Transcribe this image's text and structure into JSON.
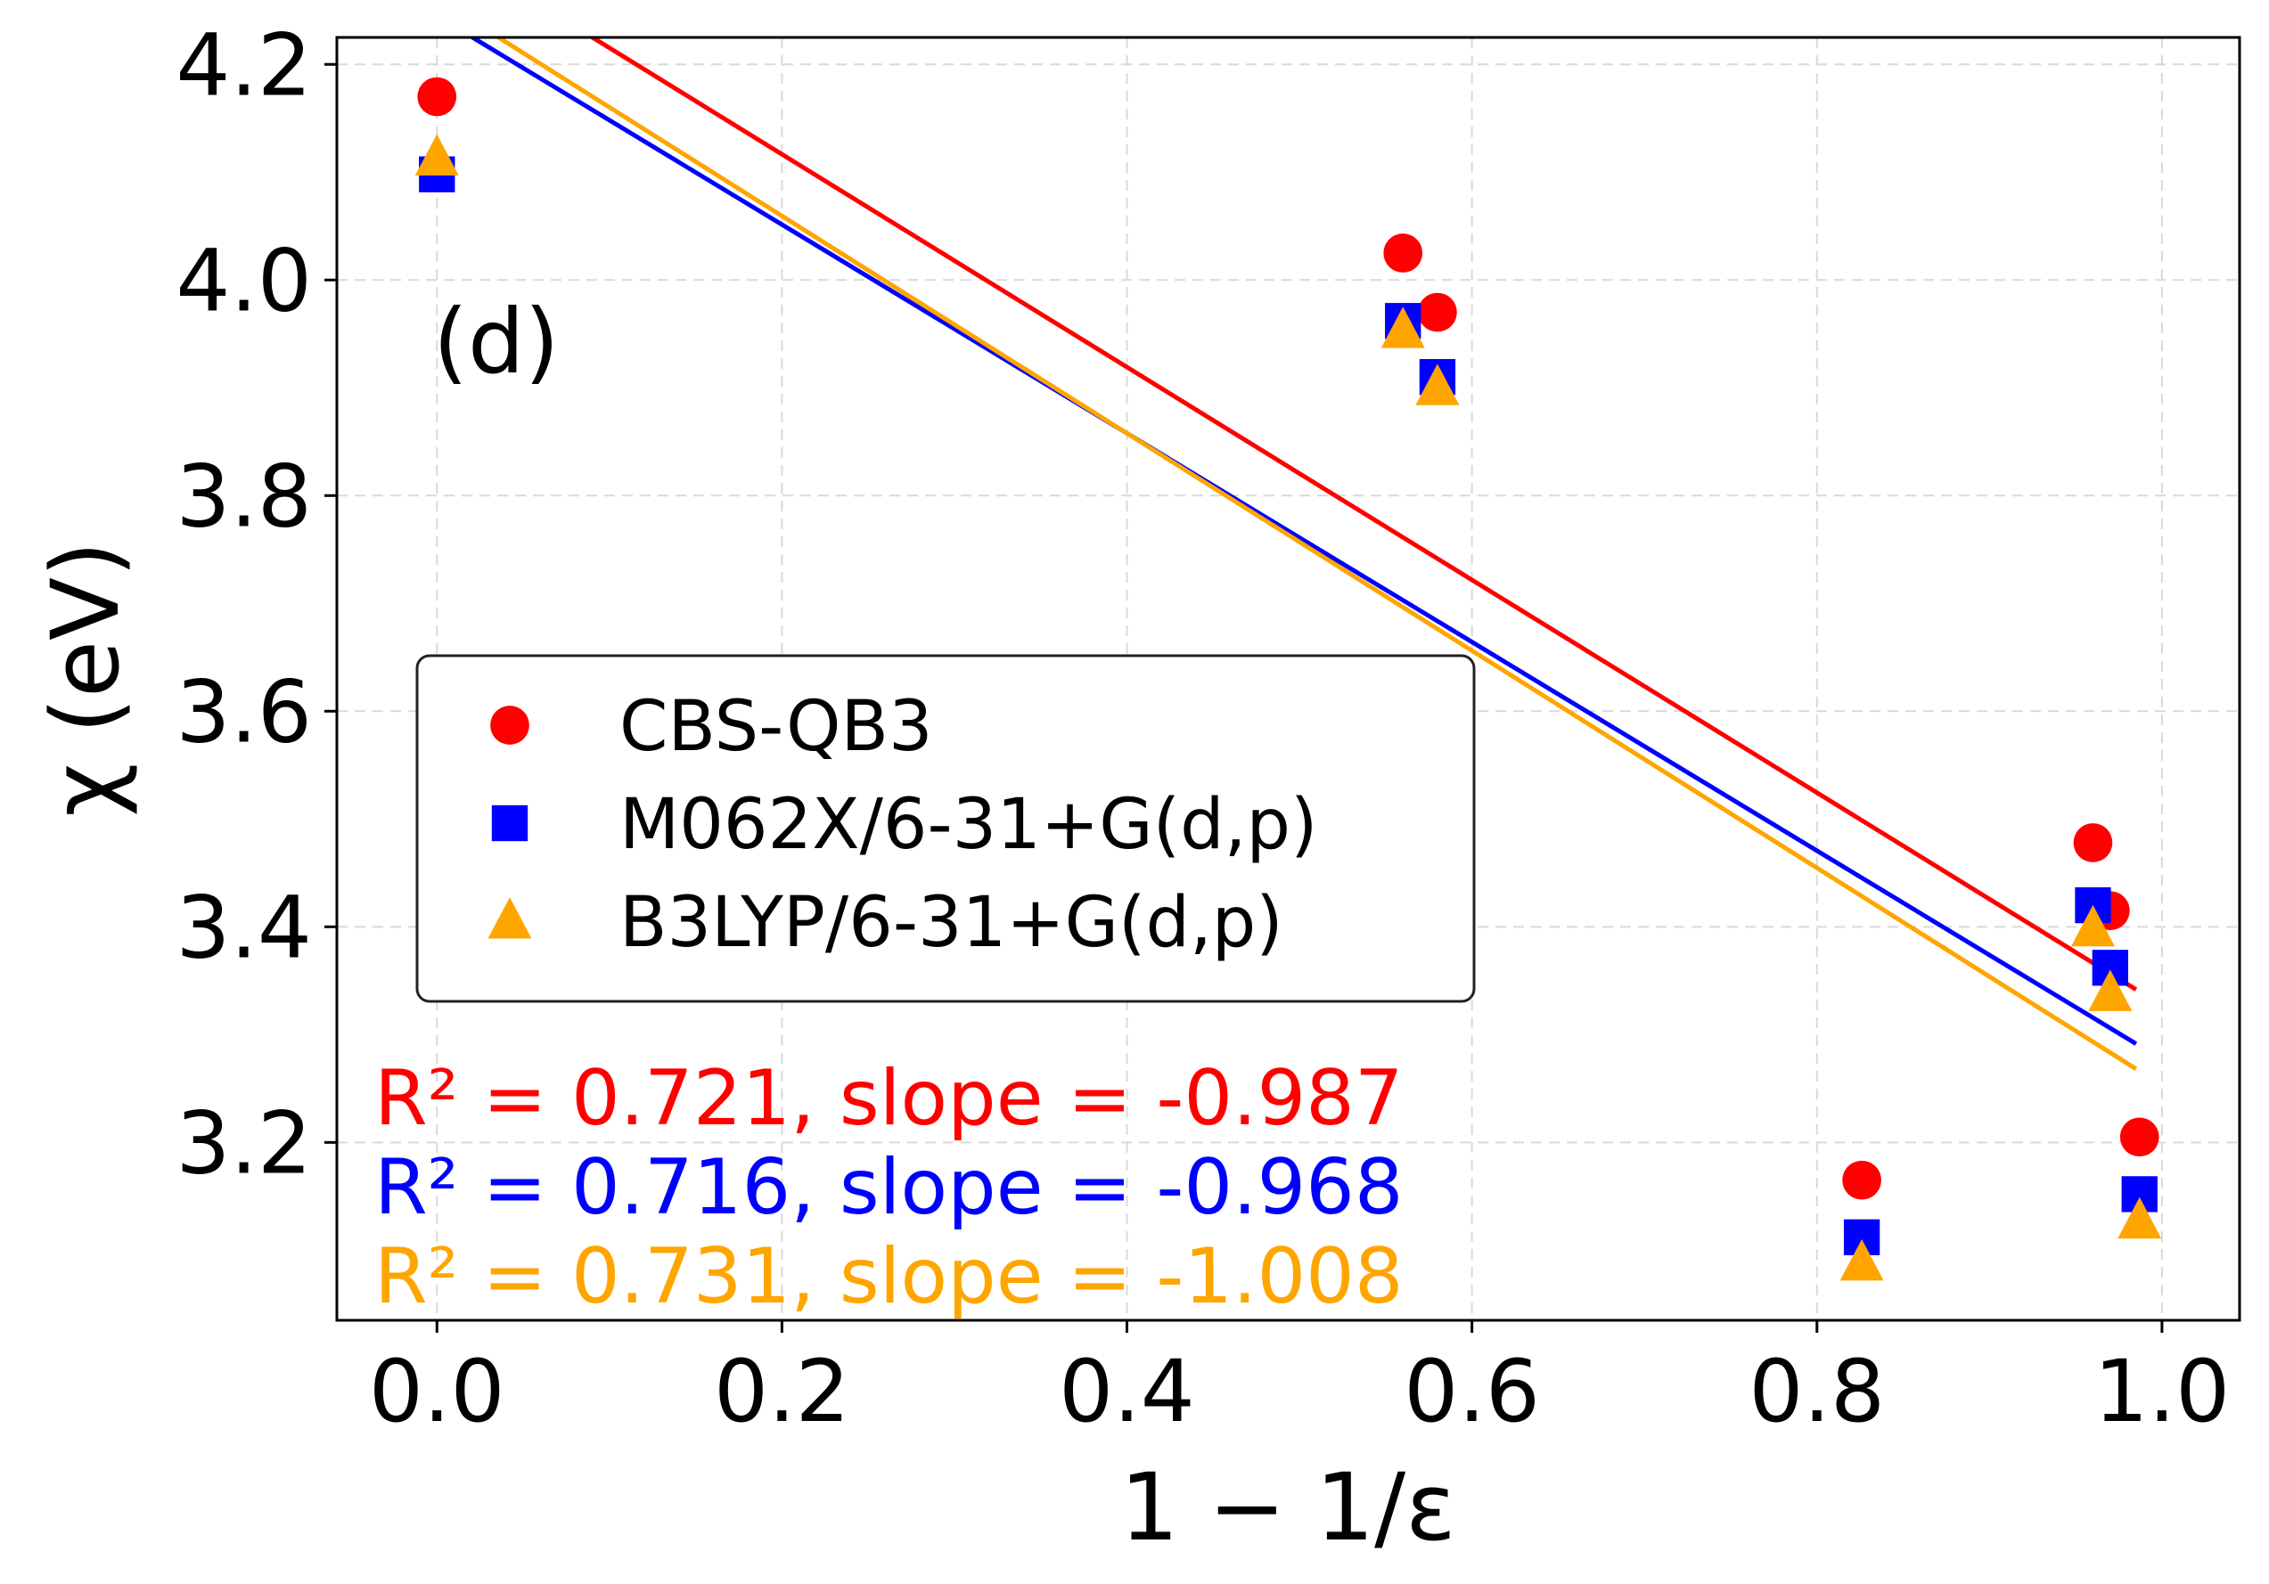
{
  "chart_data": {
    "type": "scatter",
    "panel_label": "(d)",
    "xlabel": "1 − 1/ε",
    "ylabel": "χ (eV)",
    "xlim": [
      -0.058,
      1.045
    ],
    "ylim": [
      3.035,
      4.225
    ],
    "x_ticks": [
      0.0,
      0.2,
      0.4,
      0.6,
      0.8,
      1.0
    ],
    "x_tick_labels": [
      "0.0",
      "0.2",
      "0.4",
      "0.6",
      "0.8",
      "1.0"
    ],
    "y_ticks": [
      3.2,
      3.4,
      3.6,
      3.8,
      4.0,
      4.2
    ],
    "y_tick_labels": [
      "3.2",
      "3.4",
      "3.6",
      "3.8",
      "4.0",
      "4.2"
    ],
    "grid": true,
    "legend_position": "center-left",
    "series": [
      {
        "name": "CBS-QB3",
        "color": "#ff0000",
        "marker": "circle",
        "x": [
          0.0,
          0.56,
          0.58,
          0.826,
          0.96,
          0.97,
          0.987
        ],
        "y": [
          4.17,
          4.025,
          3.97,
          3.165,
          3.478,
          3.415,
          3.205
        ],
        "fit": {
          "slope": -0.987,
          "intercept": 4.314,
          "r2": 0.721,
          "x_range": [
            0.0,
            0.985
          ]
        },
        "stats_label": "R² = 0.721, slope = -0.987"
      },
      {
        "name": "M062X/6-31+G(d,p)",
        "color": "#0000ff",
        "marker": "square",
        "x": [
          0.0,
          0.56,
          0.58,
          0.826,
          0.96,
          0.97,
          0.987
        ],
        "y": [
          4.098,
          3.962,
          3.91,
          3.112,
          3.42,
          3.362,
          3.152
        ],
        "fit": {
          "slope": -0.968,
          "intercept": 4.245,
          "r2": 0.716,
          "x_range": [
            0.0,
            0.985
          ]
        },
        "stats_label": "R² = 0.716, slope = -0.968"
      },
      {
        "name": "B3LYP/6-31+G(d,p)",
        "color": "#ffa500",
        "marker": "triangle",
        "x": [
          0.0,
          0.56,
          0.58,
          0.826,
          0.96,
          0.97,
          0.987
        ],
        "y": [
          4.113,
          3.953,
          3.9,
          3.088,
          3.398,
          3.338,
          3.127
        ],
        "fit": {
          "slope": -1.008,
          "intercept": 4.261,
          "r2": 0.731,
          "x_range": [
            0.0,
            0.985
          ]
        },
        "stats_label": "R² = 0.731, slope = -1.008"
      }
    ]
  }
}
